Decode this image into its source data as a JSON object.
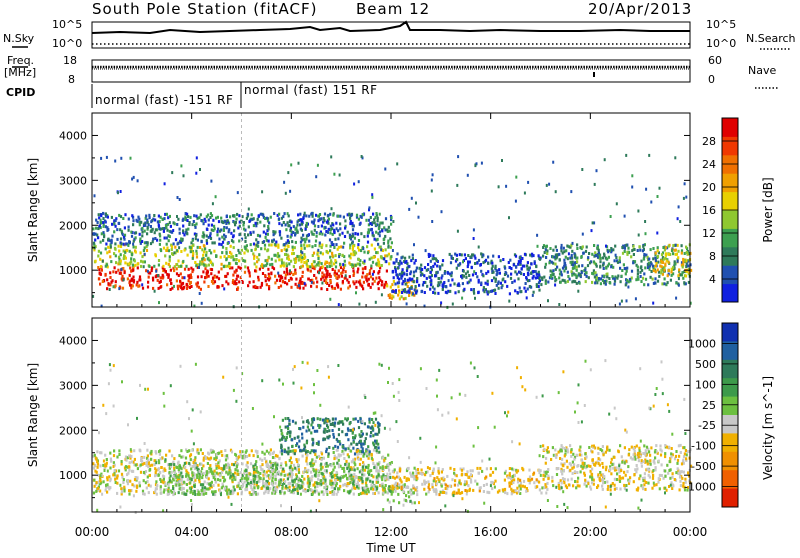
{
  "header": {
    "station": "South Pole Station (fitACF)",
    "beam": "Beam 12",
    "date": "20/Apr/2013"
  },
  "top_panels": {
    "nsky": {
      "label": "N.Sky",
      "yticks_left": [
        "10^5",
        "10^0"
      ],
      "yticks_right": [
        "10^5",
        "10^0"
      ],
      "right_label": "N.Search"
    },
    "freq": {
      "label_line1": "Freq.",
      "label_line2": "[MHz]",
      "yticks_left": [
        "18",
        "8"
      ],
      "yticks_right": [
        "60",
        "0"
      ],
      "right_label": "Nave"
    },
    "cpid": {
      "label": "CPID",
      "segments": [
        "normal (fast) -151 RF",
        "normal (fast) 151 RF"
      ]
    }
  },
  "colorbars": {
    "power": {
      "label": "Power [dB]",
      "ticks": [
        "4",
        "8",
        "12",
        "16",
        "20",
        "24",
        "28"
      ],
      "colors": [
        "#1020e0",
        "#2050b0",
        "#2e7a5a",
        "#3da050",
        "#8fc830",
        "#e8d000",
        "#f0a000",
        "#f07000",
        "#f03800",
        "#e00000"
      ]
    },
    "velocity": {
      "label": "Velocity [m s^-1]",
      "ticks": [
        "1000",
        "500",
        "100",
        "25",
        "-25",
        "-100",
        "-500",
        "-1000"
      ],
      "colors": [
        "#1030b0",
        "#2060a0",
        "#2e7a5a",
        "#3d9a4a",
        "#6cc040",
        "#c8c8c8",
        "#f0b000",
        "#f09000",
        "#f06000",
        "#e02000"
      ]
    }
  },
  "chart_data": [
    {
      "type": "heatmap",
      "title": "",
      "quantity": "Power [dB]",
      "ylabel": "Slant Range [km]",
      "xlabel": "",
      "ylim": [
        180,
        4500
      ],
      "yticks": [
        1000,
        2000,
        3000,
        4000
      ],
      "xlim_hours": [
        0,
        24
      ],
      "xticks": [
        "00:00",
        "04:00",
        "08:00",
        "12:00",
        "16:00",
        "20:00",
        "00:00"
      ],
      "grid": false,
      "scale": "colorbar right",
      "regions": [
        {
          "t0": 0.2,
          "t1": 11.8,
          "r0": 600,
          "r1": 1100,
          "value": 28
        },
        {
          "t0": 0.0,
          "t1": 12.0,
          "r0": 1100,
          "r1": 1600,
          "value": 14
        },
        {
          "t0": 0.0,
          "t1": 12.0,
          "r0": 1600,
          "r1": 2300,
          "value": 6
        },
        {
          "t0": 11.8,
          "t1": 13.0,
          "r0": 380,
          "r1": 800,
          "value": 18
        },
        {
          "t0": 12.0,
          "t1": 18.0,
          "r0": 500,
          "r1": 1400,
          "value": 4
        },
        {
          "t0": 18.0,
          "t1": 24.0,
          "r0": 700,
          "r1": 1600,
          "value": 8
        },
        {
          "t0": 22.5,
          "t1": 24.0,
          "r0": 900,
          "r1": 1600,
          "value": 16
        }
      ]
    },
    {
      "type": "heatmap",
      "title": "",
      "quantity": "Velocity [m s^-1]",
      "ylabel": "Slant Range [km]",
      "xlabel": "Time UT",
      "ylim": [
        180,
        4500
      ],
      "yticks": [
        1000,
        2000,
        3000,
        4000
      ],
      "xlim_hours": [
        0,
        24
      ],
      "xticks": [
        "00:00",
        "04:00",
        "08:00",
        "12:00",
        "16:00",
        "20:00",
        "00:00"
      ],
      "grid": false,
      "scale": "colorbar right",
      "regions": [
        {
          "t0": 0.0,
          "t1": 12.0,
          "r0": 600,
          "r1": 1600,
          "value": -100
        },
        {
          "t0": 3.0,
          "t1": 12.0,
          "r0": 600,
          "r1": 1300,
          "value": 100
        },
        {
          "t0": 7.5,
          "t1": 11.5,
          "r0": 1500,
          "r1": 2300,
          "value": 500
        },
        {
          "t0": 11.8,
          "t1": 13.0,
          "r0": 400,
          "r1": 800,
          "value": 50
        },
        {
          "t0": 12.0,
          "t1": 18.0,
          "r0": 600,
          "r1": 1200,
          "value": -200
        },
        {
          "t0": 18.0,
          "t1": 24.0,
          "r0": 700,
          "r1": 1700,
          "value": -150
        }
      ]
    }
  ]
}
